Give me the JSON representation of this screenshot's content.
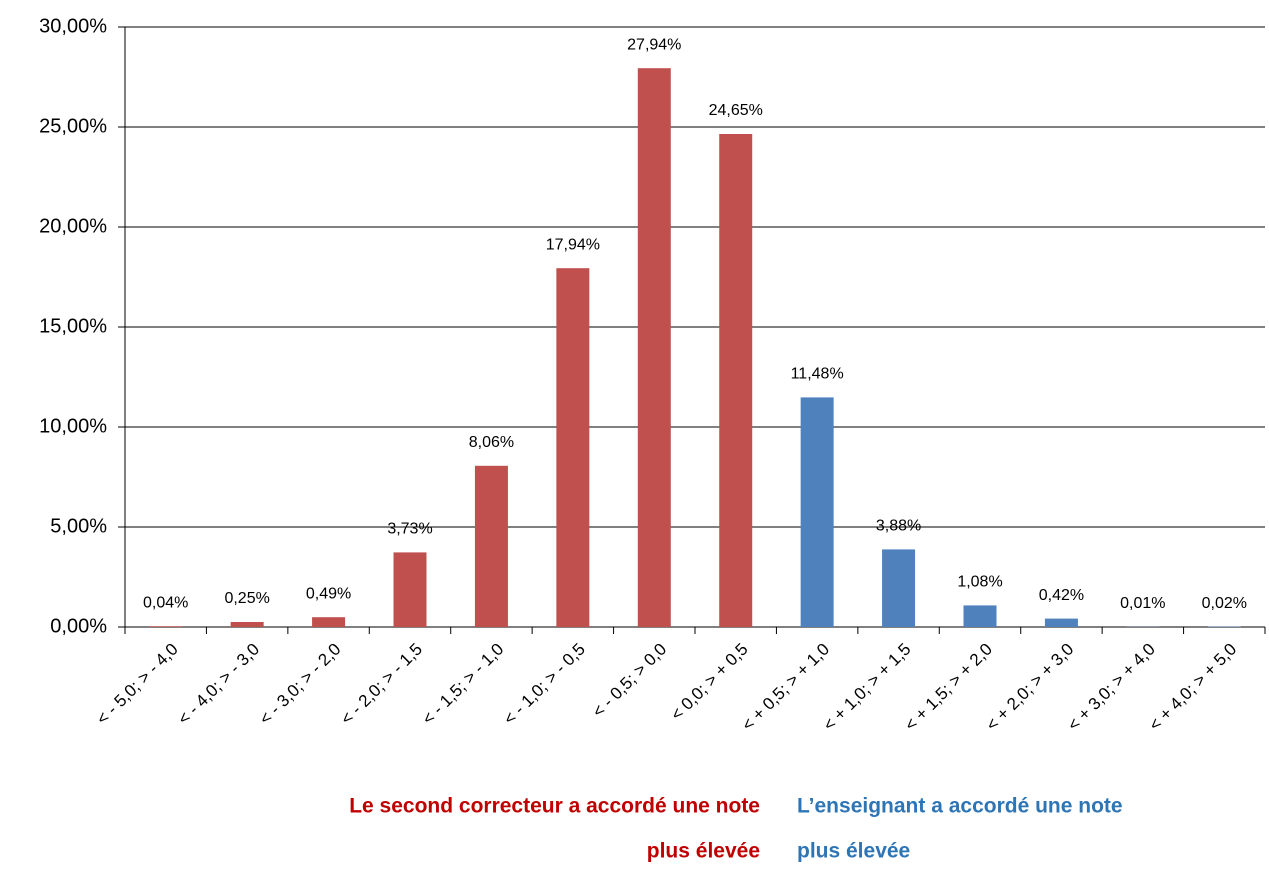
{
  "chart_data": {
    "type": "bar",
    "categories": [
      "< - 5,0; > - 4,0",
      "< - 4,0; > - 3,0",
      "< - 3,0; > - 2,0",
      "< - 2,0; > - 1,5",
      "< - 1,5; > - 1,0",
      "< - 1,0; > - 0,5",
      "< - 0,5; > 0,0",
      "< 0,0; > + 0,5",
      "< + 0,5; > + 1,0",
      "< + 1,0; > + 1,5",
      "< + 1,5; > + 2,0",
      "< + 2,0; > + 3,0",
      "< + 3,0; > + 4,0",
      "< + 4,0; > + 5,0"
    ],
    "values": [
      0.04,
      0.25,
      0.49,
      3.73,
      8.06,
      17.94,
      27.94,
      24.65,
      11.48,
      3.88,
      1.08,
      0.42,
      0.01,
      0.02
    ],
    "value_labels": [
      "0,04%",
      "0,25%",
      "0,49%",
      "3,73%",
      "8,06%",
      "17,94%",
      "27,94%",
      "24,65%",
      "11,48%",
      "3,88%",
      "1,08%",
      "0,42%",
      "0,01%",
      "0,02%"
    ],
    "colors": [
      "#c0504d",
      "#c0504d",
      "#c0504d",
      "#c0504d",
      "#c0504d",
      "#c0504d",
      "#c0504d",
      "#c0504d",
      "#4f81bd",
      "#4f81bd",
      "#4f81bd",
      "#4f81bd",
      "#4f81bd",
      "#4f81bd"
    ],
    "ylim": [
      0,
      30
    ],
    "yticks": [
      {
        "value": 0,
        "label": "0,00%"
      },
      {
        "value": 5,
        "label": "5,00%"
      },
      {
        "value": 10,
        "label": "10,00%"
      },
      {
        "value": 15,
        "label": "15,00%"
      },
      {
        "value": 20,
        "label": "20,00%"
      },
      {
        "value": 25,
        "label": "25,00%"
      },
      {
        "value": 30,
        "label": "30,00%"
      }
    ],
    "grid": true,
    "annotations": [
      {
        "lines": [
          "Le second correcteur a accordé une note",
          "plus élevée"
        ],
        "color": "#c00000"
      },
      {
        "lines": [
          "L’enseignant a accordé une note",
          "plus élevée"
        ],
        "color": "#2e75b6"
      }
    ]
  }
}
